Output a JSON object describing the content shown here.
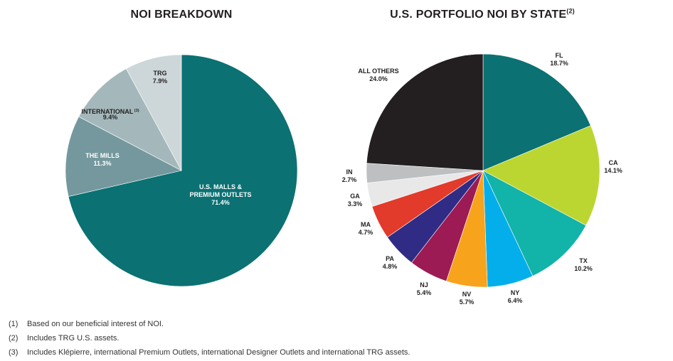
{
  "chart_data": [
    {
      "type": "pie",
      "title": "NOI BREAKDOWN",
      "slices": [
        {
          "label": [
            "U.S. MALLS &",
            "PREMIUM OUTLETS"
          ],
          "value": 71.4,
          "display": "71.4%",
          "color": "#0b7173",
          "label_color": "#ffffff"
        },
        {
          "label": [
            "THE MILLS"
          ],
          "value": 11.3,
          "display": "11.3%",
          "color": "#74989d",
          "label_color": "#ffffff"
        },
        {
          "label": [
            "INTERNATIONAL"
          ],
          "sup": "(3)",
          "value": 9.4,
          "display": "9.4%",
          "color": "#a4b8bb",
          "label_color": "#231f20"
        },
        {
          "label": [
            "TRG"
          ],
          "value": 7.9,
          "display": "7.9%",
          "color": "#cdd7da",
          "label_color": "#231f20"
        }
      ]
    },
    {
      "type": "pie",
      "title": "U.S. PORTFOLIO NOI BY STATE",
      "title_sup": "(2)",
      "slices": [
        {
          "label": "FL",
          "value": 18.7,
          "display": "18.7%",
          "color": "#0b7173"
        },
        {
          "label": "CA",
          "value": 14.1,
          "display": "14.1%",
          "color": "#bcd631"
        },
        {
          "label": "TX",
          "value": 10.2,
          "display": "10.2%",
          "color": "#12b3a8"
        },
        {
          "label": "NY",
          "value": 6.4,
          "display": "6.4%",
          "color": "#04aeea"
        },
        {
          "label": "NV",
          "value": 5.7,
          "display": "5.7%",
          "color": "#f8a31c"
        },
        {
          "label": "NJ",
          "value": 5.4,
          "display": "5.4%",
          "color": "#9c1b54"
        },
        {
          "label": "PA",
          "value": 4.8,
          "display": "4.8%",
          "color": "#302c85"
        },
        {
          "label": "MA",
          "value": 4.7,
          "display": "4.7%",
          "color": "#e23a2b"
        },
        {
          "label": "GA",
          "value": 3.3,
          "display": "3.3%",
          "color": "#e8e8e8"
        },
        {
          "label": "IN",
          "value": 2.7,
          "display": "2.7%",
          "color": "#bdbfc1"
        },
        {
          "label": "ALL OTHERS",
          "value": 24.0,
          "display": "24.0%",
          "color": "#231f20"
        }
      ]
    }
  ],
  "footnotes": [
    {
      "num": "(1)",
      "text": "Based on our beneficial interest of NOI."
    },
    {
      "num": "(2)",
      "text": "Includes TRG U.S. assets."
    },
    {
      "num": "(3)",
      "text": "Includes Klépierre, international Premium Outlets, international Designer Outlets and international TRG assets."
    }
  ]
}
